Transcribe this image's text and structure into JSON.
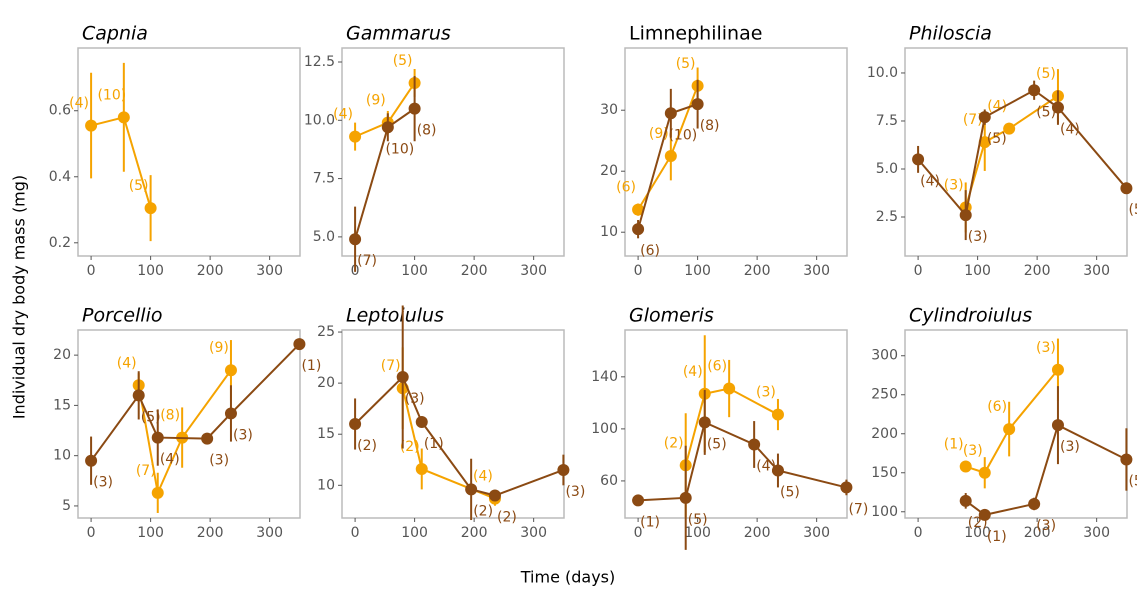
{
  "chart_data": [
    {
      "type": "line",
      "title": "Capnia",
      "italic_title": true,
      "xlim": [
        -22,
        351
      ],
      "xticks": [
        0,
        100,
        200,
        300
      ],
      "ylim": [
        0.16,
        0.79
      ],
      "yticks": [
        0.2,
        0.4,
        0.6
      ],
      "series": [
        {
          "color": "#f5a300",
          "x": [
            0,
            55,
            100
          ],
          "values": [
            0.555,
            0.58,
            0.305
          ],
          "errors": [
            0.16,
            0.165,
            0.1
          ],
          "labels": [
            "(4)",
            "(10)",
            "(5)"
          ]
        }
      ]
    },
    {
      "type": "line",
      "title": "Gammarus",
      "italic_title": true,
      "xlim": [
        -22,
        351
      ],
      "xticks": [
        0,
        100,
        200,
        300
      ],
      "ylim": [
        4.18,
        13.1
      ],
      "yticks": [
        {
          "value": 5,
          "label": "5.0"
        },
        {
          "value": 7.5,
          "label": "7.5"
        },
        {
          "value": 10,
          "label": "10.0"
        },
        {
          "value": 12.5,
          "label": "12.5"
        }
      ],
      "series": [
        {
          "color": "#f5a300",
          "x": [
            0,
            55,
            100
          ],
          "values": [
            9.3,
            9.9,
            11.6
          ],
          "errors": [
            0.6,
            0.5,
            0.6
          ],
          "labels": [
            "(4)",
            "(9)",
            "(5)"
          ]
        },
        {
          "color": "#8b4a13",
          "x": [
            0,
            55,
            100
          ],
          "values": [
            4.9,
            9.7,
            10.5
          ],
          "errors": [
            1.4,
            0.6,
            1.4
          ],
          "labels": [
            "(7)",
            "(10)",
            "(8)"
          ]
        }
      ]
    },
    {
      "type": "line",
      "title": "Limnephilinae",
      "italic_title": false,
      "xlim": [
        -22,
        351
      ],
      "xticks": [
        0,
        100,
        200,
        300
      ],
      "ylim": [
        6.1,
        40.2
      ],
      "yticks": [
        10,
        20,
        30
      ],
      "series": [
        {
          "color": "#f5a300",
          "x": [
            0,
            55,
            100
          ],
          "values": [
            13.7,
            22.5,
            34
          ],
          "errors": [
            1,
            4,
            3
          ],
          "labels": [
            "(6)",
            "(9)",
            "(5)"
          ]
        },
        {
          "color": "#8b4a13",
          "x": [
            0,
            55,
            100
          ],
          "values": [
            10.5,
            29.5,
            31
          ],
          "errors": [
            1.5,
            4,
            4
          ],
          "labels": [
            "(6)",
            "(10)",
            "(8)"
          ]
        }
      ]
    },
    {
      "type": "line",
      "title": "Philoscia",
      "italic_title": true,
      "xlim": [
        -22,
        351
      ],
      "xticks": [
        0,
        100,
        200,
        300
      ],
      "ylim": [
        0.47,
        11.3
      ],
      "yticks": [
        {
          "value": 2.5,
          "label": "2.5"
        },
        {
          "value": 5,
          "label": "5.0"
        },
        {
          "value": 7.5,
          "label": "7.5"
        },
        {
          "value": 10,
          "label": "10.0"
        }
      ],
      "series": [
        {
          "color": "#f5a300",
          "x": [
            80,
            112,
            153,
            235
          ],
          "values": [
            3.0,
            6.4,
            7.1,
            8.8
          ],
          "errors": [
            1.3,
            1.5,
            0.3,
            1.4
          ],
          "labels": [
            "(3)",
            "(7)",
            "(4)",
            "(5)"
          ]
        },
        {
          "color": "#8b4a13",
          "x": [
            0,
            80,
            112,
            195,
            235,
            350
          ],
          "values": [
            5.5,
            2.6,
            7.7,
            9.1,
            8.2,
            4.0
          ],
          "errors": [
            0.7,
            1.3,
            0.4,
            0.5,
            0.9,
            0.3
          ],
          "labels": [
            "(4)",
            "(3)",
            "(5)",
            "(5)",
            "(4)",
            "(5)"
          ]
        }
      ]
    },
    {
      "type": "line",
      "title": "Porcellio",
      "italic_title": true,
      "xlim": [
        -22,
        351
      ],
      "xticks": [
        0,
        100,
        200,
        300
      ],
      "ylim": [
        3.8,
        22.5
      ],
      "yticks": [
        5,
        10,
        15,
        20
      ],
      "series": [
        {
          "color": "#f5a300",
          "x": [
            80,
            112,
            153,
            235
          ],
          "values": [
            17,
            6.3,
            11.8,
            18.5
          ],
          "errors": [
            1.2,
            2,
            3,
            3
          ],
          "labels": [
            "(4)",
            "(7)",
            "(8)",
            "(9)"
          ]
        },
        {
          "color": "#8b4a13",
          "x": [
            0,
            80,
            112,
            195,
            235,
            350
          ],
          "values": [
            9.5,
            16,
            11.8,
            11.7,
            14.2,
            21.1
          ],
          "errors": [
            2.4,
            2.4,
            2.8,
            0.3,
            2.8,
            0.3
          ],
          "labels": [
            "(3)",
            "(5)",
            "(4)",
            "(3)",
            "(3)",
            "(1)"
          ]
        }
      ]
    },
    {
      "type": "line",
      "title": "Leptoiulus",
      "italic_title": true,
      "xlim": [
        -22,
        351
      ],
      "xticks": [
        0,
        100,
        200,
        300
      ],
      "ylim": [
        6.8,
        25.2
      ],
      "yticks": [
        10,
        15,
        20,
        25
      ],
      "series": [
        {
          "color": "#f5a300",
          "x": [
            80,
            112,
            235
          ],
          "values": [
            19.5,
            11.6,
            8.7
          ],
          "errors": [
            4,
            2,
            0.7
          ],
          "labels": [
            "(7)",
            "(2)",
            "(4)"
          ]
        },
        {
          "color": "#8b4a13",
          "x": [
            0,
            80,
            112,
            195,
            235,
            350
          ],
          "values": [
            16,
            20.6,
            16.2,
            9.6,
            9.0,
            11.5
          ],
          "errors": [
            2.5,
            7,
            0.2,
            3,
            0.4,
            1.5
          ],
          "labels": [
            "(2)",
            "(3)",
            "(1)",
            "(2)",
            "(2)",
            "(3)"
          ]
        }
      ]
    },
    {
      "type": "line",
      "title": "Glomeris",
      "italic_title": true,
      "xlim": [
        -22,
        351
      ],
      "xticks": [
        0,
        100,
        200,
        300
      ],
      "ylim": [
        31.5,
        176
      ],
      "yticks": [
        60,
        100,
        140
      ],
      "series": [
        {
          "color": "#f5a300",
          "x": [
            80,
            112,
            153,
            235
          ],
          "values": [
            72,
            127,
            131,
            111
          ],
          "errors": [
            40,
            45,
            22,
            12
          ],
          "labels": [
            "(2)",
            "(4)",
            "(6)",
            "(3)"
          ]
        },
        {
          "color": "#8b4a13",
          "x": [
            0,
            80,
            112,
            195,
            235,
            350
          ],
          "values": [
            45,
            47,
            105,
            88,
            68,
            55
          ],
          "errors": [
            1,
            40,
            25,
            18,
            13,
            6
          ],
          "labels": [
            "(1)",
            "(5)",
            "(5)",
            "(4)",
            "(5)",
            "(7)"
          ]
        }
      ]
    },
    {
      "type": "line",
      "title": "Cylindroiulus",
      "italic_title": true,
      "xlim": [
        -22,
        351
      ],
      "xticks": [
        0,
        100,
        200,
        300
      ],
      "ylim": [
        92,
        333
      ],
      "yticks": [
        100,
        150,
        200,
        250,
        300
      ],
      "series": [
        {
          "color": "#f5a300",
          "x": [
            80,
            112,
            153,
            235
          ],
          "values": [
            158,
            150,
            206,
            282
          ],
          "errors": [
            5,
            20,
            35,
            40
          ],
          "labels": [
            "(1)",
            "(3)",
            "(6)",
            "(3)"
          ]
        },
        {
          "color": "#8b4a13",
          "x": [
            80,
            112,
            195,
            235,
            350
          ],
          "values": [
            114,
            96,
            110,
            211,
            167
          ],
          "errors": [
            10,
            3,
            8,
            50,
            40
          ],
          "labels": [
            "(2)",
            "(1)",
            "(3)",
            "(3)",
            "(5)"
          ]
        }
      ]
    }
  ],
  "figure": {
    "x_label": "Time (days)",
    "y_label": "Individual dry body mass (mg)"
  }
}
